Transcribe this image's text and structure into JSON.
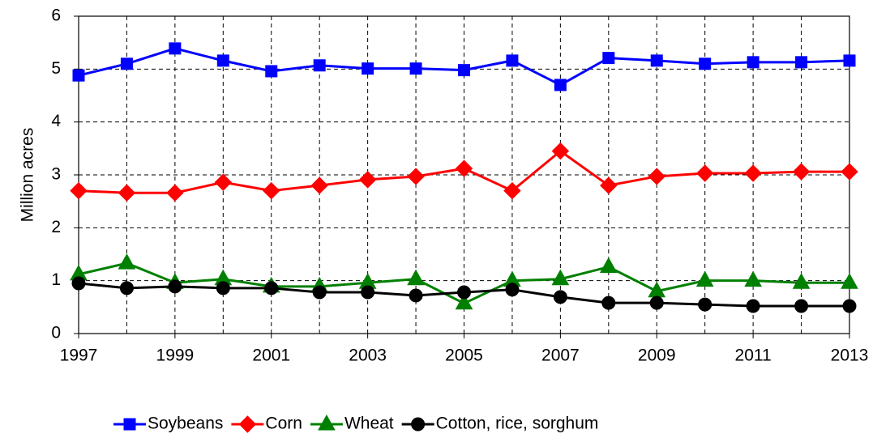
{
  "chart_data": {
    "type": "line",
    "y_label": "Million acres",
    "x": [
      1997,
      1998,
      1999,
      2000,
      2001,
      2002,
      2003,
      2004,
      2005,
      2006,
      2007,
      2008,
      2009,
      2010,
      2011,
      2012,
      2013
    ],
    "xlim": [
      1997,
      2013
    ],
    "xticks": [
      1997,
      1999,
      2001,
      2003,
      2005,
      2007,
      2009,
      2011,
      2013
    ],
    "ylim": [
      0,
      6
    ],
    "yticks": [
      0,
      1,
      2,
      3,
      4,
      5,
      6
    ],
    "grid": true,
    "legend": "bottom",
    "series": [
      {
        "name": "Soybeans",
        "color": "#0000ff",
        "marker": "square",
        "values": [
          4.88,
          5.1,
          5.39,
          5.16,
          4.96,
          5.07,
          5.01,
          5.01,
          4.98,
          5.16,
          4.7,
          5.21,
          5.16,
          5.1,
          5.13,
          5.13,
          5.16
        ]
      },
      {
        "name": "Corn",
        "color": "#ff0000",
        "marker": "diamond",
        "values": [
          2.7,
          2.66,
          2.66,
          2.86,
          2.7,
          2.8,
          2.91,
          2.97,
          3.12,
          2.7,
          3.45,
          2.8,
          2.97,
          3.03,
          3.03,
          3.06,
          3.06
        ]
      },
      {
        "name": "Wheat",
        "color": "#008000",
        "marker": "triangle",
        "values": [
          1.12,
          1.33,
          0.96,
          1.03,
          0.89,
          0.89,
          0.96,
          1.03,
          0.57,
          1.0,
          1.03,
          1.26,
          0.8,
          1.0,
          1.0,
          0.96,
          0.96
        ]
      },
      {
        "name": "Cotton, rice, sorghum",
        "color": "#000000",
        "marker": "circle",
        "values": [
          0.95,
          0.86,
          0.89,
          0.86,
          0.86,
          0.78,
          0.78,
          0.72,
          0.78,
          0.83,
          0.69,
          0.58,
          0.58,
          0.55,
          0.52,
          0.52,
          0.52
        ]
      }
    ]
  }
}
